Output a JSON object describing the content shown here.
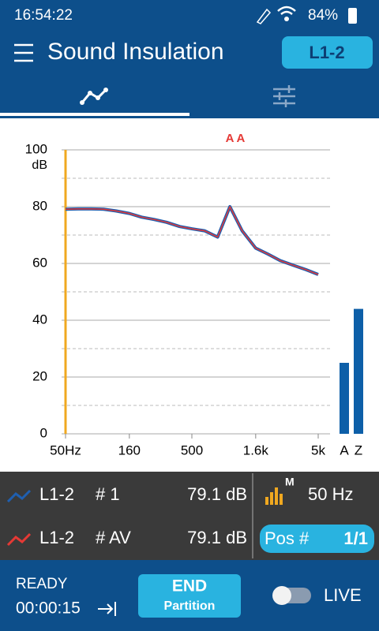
{
  "status_bar": {
    "time": "16:54:22",
    "battery": "84%"
  },
  "header": {
    "title": "Sound Insulation",
    "badge": "L1-2"
  },
  "chart_data": {
    "type": "line",
    "y_label": "dB",
    "annotation": "A A",
    "x": [
      50,
      63,
      80,
      100,
      125,
      160,
      200,
      250,
      315,
      400,
      500,
      630,
      800,
      1000,
      1250,
      1600,
      2000,
      2500,
      3150,
      4000,
      5000
    ],
    "series": [
      {
        "name": "L1-2",
        "label": "# 1",
        "reading": "79.1 dB",
        "color": "#1f5fb0",
        "values": [
          79.1,
          79.2,
          79.2,
          79.1,
          78.5,
          77.6,
          76.3,
          75.5,
          74.5,
          73.0,
          72.2,
          71.5,
          69.3,
          80.0,
          71.5,
          65.4,
          63.3,
          61.0,
          59.4,
          57.8,
          56.1
        ]
      },
      {
        "name": "L1-2",
        "label": "# AV",
        "reading": "79.1 dB",
        "color": "#e53935",
        "values": [
          79.1,
          79.2,
          79.2,
          79.1,
          78.5,
          77.6,
          76.3,
          75.5,
          74.5,
          73.0,
          72.2,
          71.5,
          69.3,
          80.0,
          71.5,
          65.4,
          63.3,
          61.0,
          59.4,
          57.8,
          56.1
        ]
      }
    ],
    "xlim": [
      50,
      5000
    ],
    "log_x": true,
    "xticks": [
      {
        "value": 50,
        "label": "50Hz"
      },
      160,
      500,
      {
        "value": 1600,
        "label": "1.6k"
      },
      {
        "value": 5000,
        "label": "5k"
      }
    ],
    "ylim": [
      0,
      100
    ],
    "yticks": [
      0,
      20,
      40,
      60,
      80,
      100
    ],
    "minor_yticks": [
      10,
      30,
      50,
      70,
      90
    ],
    "grid": true,
    "cursor": 50,
    "cursor_color": "#f0a820",
    "side_bars": {
      "categories": [
        "A",
        "Z"
      ],
      "values": [
        25,
        44
      ],
      "color": "#0d5fa8"
    }
  },
  "info_panel": {
    "marker": "M",
    "frequency": "50 Hz",
    "position_label": "Pos #",
    "position": "1/1"
  },
  "footer": {
    "status": "READY",
    "elapsed": "00:00:15",
    "button_title": "END",
    "button_subtitle": "Partition",
    "toggle_label": "LIVE"
  }
}
